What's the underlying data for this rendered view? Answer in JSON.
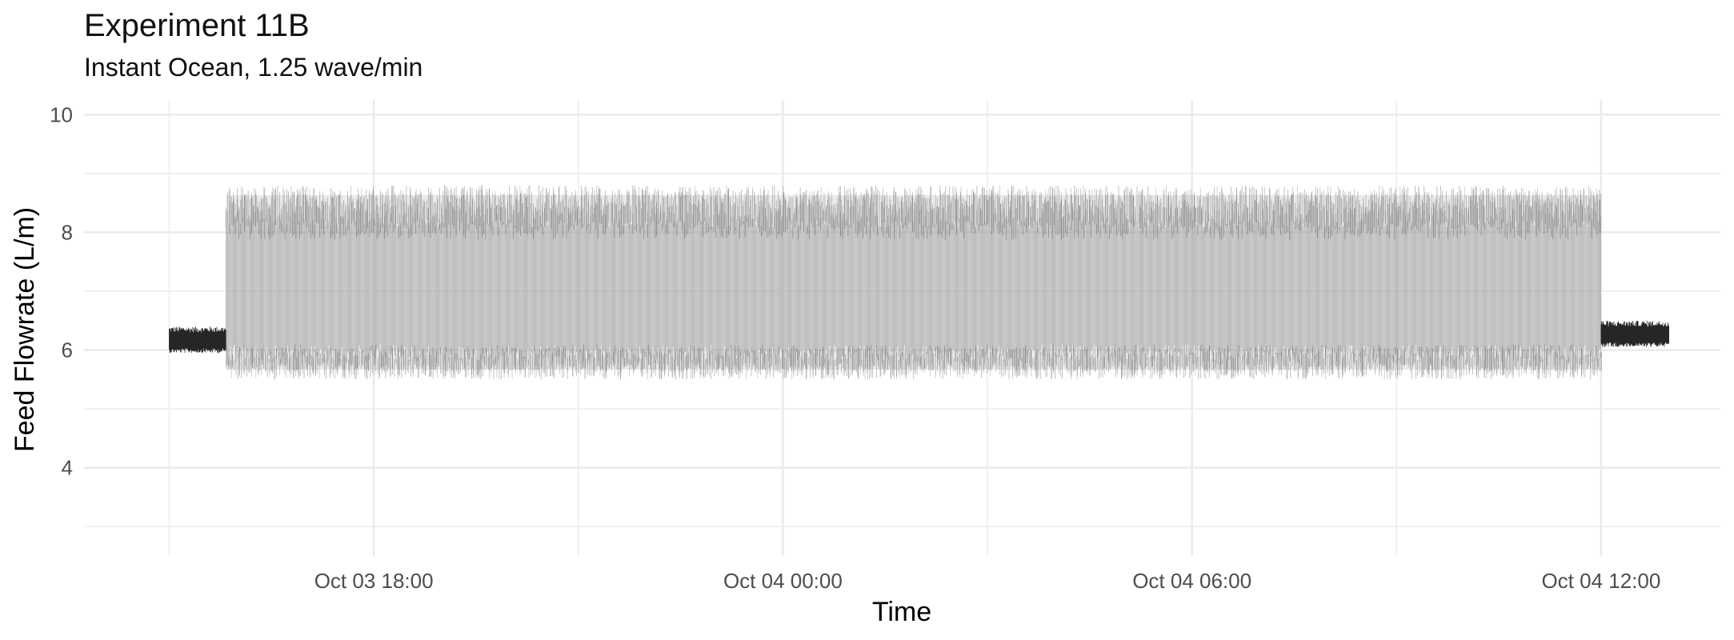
{
  "chart_data": {
    "type": "line",
    "title": "Experiment 11B",
    "subtitle": "Instant Ocean, 1.25 wave/min",
    "xlabel": "Time",
    "ylabel": "Feed Flowrate (L/m)",
    "x_ticks": [
      "Oct 03 18:00",
      "Oct 04 00:00",
      "Oct 04 06:00",
      "Oct 04 12:00"
    ],
    "y_ticks": [
      4,
      6,
      8,
      10
    ],
    "xlim": [
      "2023-10-03 13:45",
      "2023-10-04 13:45"
    ],
    "ylim": [
      2.5,
      10.25
    ],
    "grid": true,
    "line_color": "#000000",
    "series": [
      {
        "segments": [
          {
            "start": "2023-10-03 15:00",
            "end": "2023-10-03 15:50",
            "low": 5.95,
            "high": 6.4,
            "mean": 6.15
          },
          {
            "start": "2023-10-03 15:50",
            "end": "2023-10-04 12:00",
            "low": 5.5,
            "high": 8.8,
            "mean": 7.1,
            "waves_per_min": 1.25
          },
          {
            "start": "2023-10-04 12:00",
            "end": "2023-10-04 13:00",
            "low": 6.05,
            "high": 6.5,
            "mean": 6.25
          }
        ]
      }
    ]
  }
}
